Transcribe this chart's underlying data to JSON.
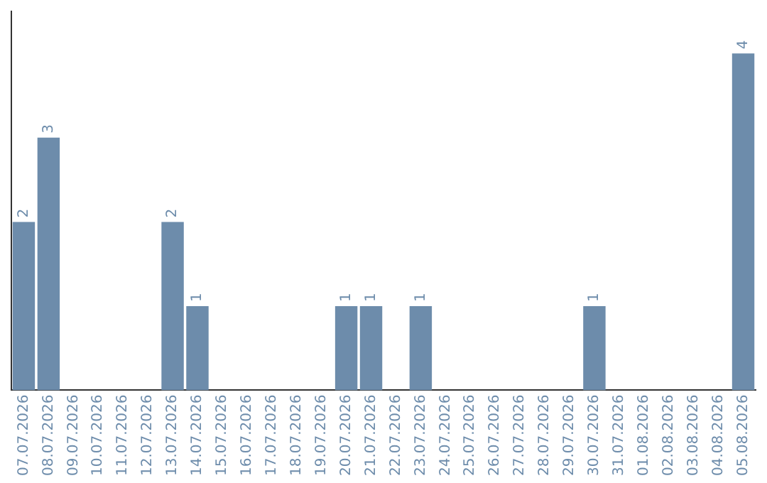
{
  "chart_data": {
    "type": "bar",
    "categories": [
      "07.07.2026",
      "08.07.2026",
      "09.07.2026",
      "10.07.2026",
      "11.07.2026",
      "12.07.2026",
      "13.07.2026",
      "14.07.2026",
      "15.07.2026",
      "16.07.2026",
      "17.07.2026",
      "18.07.2026",
      "19.07.2026",
      "20.07.2026",
      "21.07.2026",
      "22.07.2026",
      "23.07.2026",
      "24.07.2026",
      "25.07.2026",
      "26.07.2026",
      "27.07.2026",
      "28.07.2026",
      "29.07.2026",
      "30.07.2026",
      "31.07.2026",
      "01.08.2026",
      "02.08.2026",
      "03.08.2026",
      "04.08.2026",
      "05.08.2026"
    ],
    "values": [
      2,
      3,
      0,
      0,
      0,
      0,
      2,
      1,
      0,
      0,
      0,
      0,
      0,
      1,
      1,
      0,
      1,
      0,
      0,
      0,
      0,
      0,
      0,
      1,
      0,
      0,
      0,
      0,
      0,
      4
    ],
    "value_labels": [
      "2",
      "3",
      null,
      null,
      null,
      null,
      "2",
      "1",
      null,
      null,
      null,
      null,
      null,
      "1",
      "1",
      null,
      "1",
      null,
      null,
      null,
      null,
      null,
      null,
      "1",
      null,
      null,
      null,
      null,
      null,
      "4"
    ],
    "color": "#6d8cab",
    "grid": false,
    "legend": false,
    "tick_labels": "x"
  }
}
